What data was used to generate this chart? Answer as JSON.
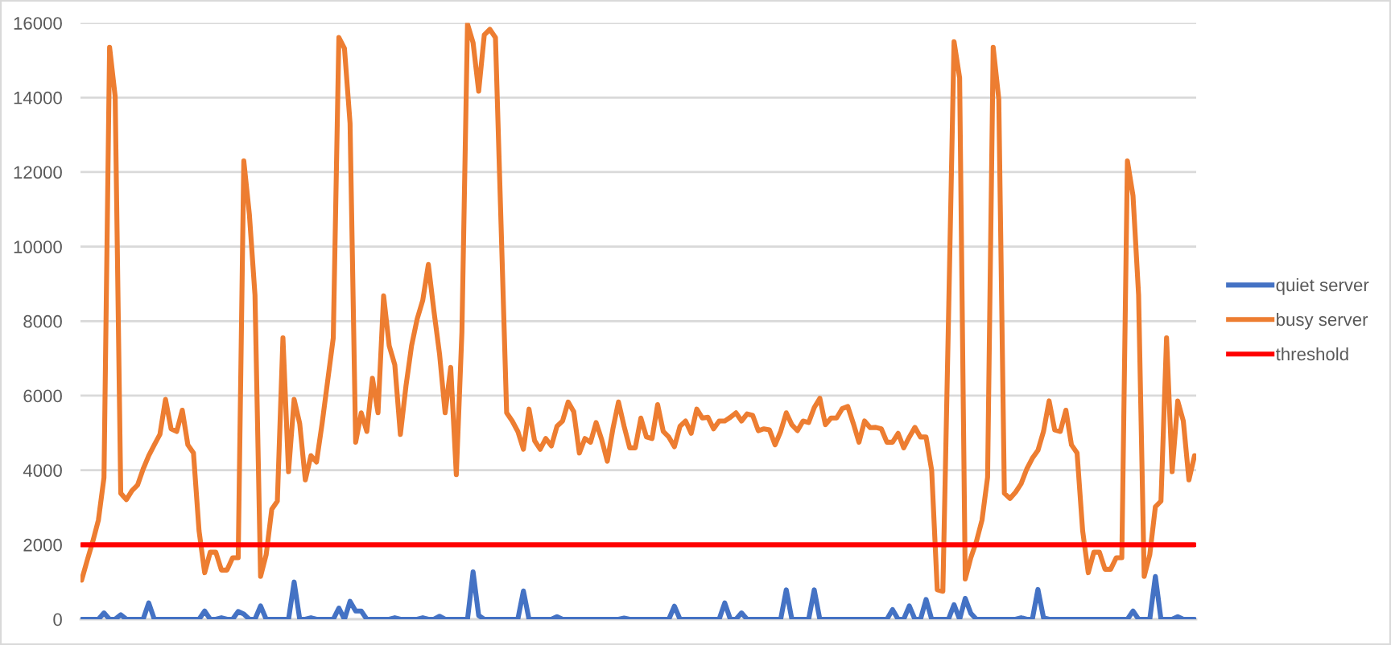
{
  "chart_data": {
    "type": "line",
    "categories": [
      null,
      null,
      null,
      null,
      null,
      null,
      null,
      null,
      null,
      null,
      null,
      null,
      null,
      null,
      null,
      null,
      null,
      null,
      null,
      null,
      null,
      null,
      null,
      null,
      null,
      null,
      null,
      null,
      null,
      null,
      null,
      null,
      null,
      null,
      null,
      null,
      null,
      null,
      null,
      null,
      null,
      null,
      null,
      null,
      null,
      null,
      null,
      null,
      null,
      null,
      null,
      null,
      null,
      null,
      null,
      null,
      null,
      null,
      null,
      null,
      null,
      null,
      null,
      null,
      null,
      null,
      null,
      null,
      null,
      null,
      null,
      null,
      null,
      null,
      null,
      null,
      null,
      null,
      null,
      null,
      null,
      null,
      null,
      null,
      null,
      null,
      null,
      null,
      null,
      null,
      null,
      null,
      null,
      null,
      null,
      null,
      null,
      null,
      null,
      null,
      null,
      null,
      null,
      null,
      null,
      null,
      null,
      null,
      null,
      null,
      null,
      null,
      null,
      null,
      null,
      null,
      null,
      null,
      null,
      null,
      null,
      null,
      null,
      null,
      null,
      null,
      null,
      null,
      null,
      null,
      null,
      null,
      null,
      null,
      null,
      null,
      null,
      null,
      null,
      null,
      null,
      null,
      null,
      null,
      null,
      null,
      null,
      null,
      null,
      null,
      null,
      null,
      null,
      null,
      null,
      null,
      null,
      null,
      null,
      null,
      null,
      null,
      null,
      null,
      null,
      null,
      null,
      null,
      null,
      null,
      null,
      null,
      null,
      null,
      null,
      null,
      null,
      null,
      null,
      null,
      null,
      null,
      null,
      null,
      null,
      null,
      null,
      null,
      null,
      null,
      null,
      null,
      null,
      null,
      null,
      null,
      null,
      null,
      null,
      null
    ],
    "series": [
      {
        "name": "quiet server",
        "color": "#4472c4",
        "values": [
          0,
          0,
          0,
          0,
          170,
          0,
          0,
          120,
          0,
          0,
          0,
          0,
          440,
          0,
          0,
          0,
          0,
          0,
          0,
          0,
          0,
          0,
          220,
          0,
          0,
          40,
          0,
          0,
          210,
          140,
          0,
          0,
          360,
          0,
          0,
          0,
          0,
          0,
          1000,
          0,
          0,
          40,
          0,
          0,
          0,
          0,
          300,
          0,
          480,
          220,
          220,
          0,
          0,
          0,
          0,
          0,
          40,
          0,
          0,
          0,
          0,
          40,
          0,
          0,
          80,
          0,
          0,
          0,
          0,
          0,
          1270,
          100,
          0,
          0,
          0,
          0,
          0,
          0,
          0,
          760,
          0,
          0,
          0,
          0,
          0,
          70,
          0,
          0,
          0,
          0,
          0,
          0,
          0,
          0,
          0,
          0,
          0,
          30,
          0,
          0,
          0,
          0,
          0,
          0,
          0,
          0,
          350,
          0,
          0,
          0,
          0,
          0,
          0,
          0,
          0,
          440,
          0,
          0,
          170,
          0,
          0,
          0,
          0,
          0,
          0,
          0,
          790,
          0,
          0,
          0,
          0,
          790,
          0,
          0,
          0,
          0,
          0,
          0,
          0,
          0,
          0,
          0,
          0,
          0,
          0,
          260,
          0,
          0,
          360,
          0,
          0,
          530,
          0,
          0,
          0,
          0,
          390,
          0,
          560,
          160,
          0,
          0,
          0,
          0,
          0,
          0,
          0,
          0,
          40,
          0,
          0,
          800,
          40,
          0,
          0,
          0,
          0,
          0,
          0,
          0,
          0,
          0,
          0,
          0,
          0,
          0,
          0,
          0,
          220,
          0,
          0,
          0,
          1150,
          0,
          0,
          0,
          70,
          0,
          0,
          0
        ]
      },
      {
        "name": "busy server",
        "color": "#ed7d31",
        "values": [
          1050,
          1580,
          2090,
          2660,
          3800,
          15350,
          14030,
          3380,
          3210,
          3450,
          3600,
          4030,
          4390,
          4680,
          4960,
          5900,
          5110,
          5040,
          5610,
          4680,
          4460,
          2370,
          1250,
          1800,
          1800,
          1320,
          1320,
          1650,
          1650,
          12300,
          10860,
          8700,
          1150,
          1730,
          2950,
          3170,
          7550,
          3960,
          5900,
          5250,
          3740,
          4390,
          4220,
          5250,
          6400,
          7550,
          15610,
          15320,
          13310,
          4750,
          5540,
          5040,
          6470,
          5540,
          8680,
          7340,
          6830,
          4960,
          6260,
          7340,
          8060,
          8560,
          9520,
          8270,
          7120,
          5540,
          6760,
          3880,
          7700,
          15970,
          15470,
          14170,
          15680,
          15830,
          15610,
          10600,
          5540,
          5320,
          5040,
          4560,
          5640,
          4790,
          4560,
          4850,
          4650,
          5180,
          5320,
          5830,
          5570,
          4460,
          4850,
          4750,
          5280,
          4820,
          4240,
          5110,
          5830,
          5180,
          4600,
          4600,
          5400,
          4890,
          4850,
          5760,
          5040,
          4890,
          4630,
          5180,
          5320,
          4990,
          5640,
          5400,
          5420,
          5110,
          5320,
          5320,
          5420,
          5540,
          5320,
          5510,
          5470,
          5060,
          5110,
          5080,
          4680,
          5040,
          5540,
          5220,
          5060,
          5320,
          5280,
          5680,
          5930,
          5220,
          5400,
          5400,
          5650,
          5710,
          5250,
          4750,
          5320,
          5140,
          5150,
          5110,
          4750,
          4750,
          4990,
          4600,
          4890,
          5150,
          4890,
          4890,
          4000,
          790,
          750,
          8000,
          15500,
          14530,
          1080,
          1650,
          2090,
          2660,
          3810,
          15350,
          13960,
          3380,
          3240,
          3410,
          3640,
          4030,
          4320,
          4530,
          5040,
          5860,
          5080,
          5040,
          5610,
          4680,
          4460,
          2370,
          1250,
          1800,
          1800,
          1340,
          1340,
          1650,
          1650,
          12300,
          11370,
          8700,
          1150,
          1730,
          3020,
          3170,
          7550,
          3960,
          5860,
          5320,
          3740,
          4390
        ]
      },
      {
        "name": "threshold",
        "color": "#ff0000",
        "values": [
          2000,
          2000,
          2000,
          2000,
          2000,
          2000,
          2000,
          2000,
          2000,
          2000,
          2000,
          2000,
          2000,
          2000,
          2000,
          2000,
          2000,
          2000,
          2000,
          2000,
          2000,
          2000,
          2000,
          2000,
          2000,
          2000,
          2000,
          2000,
          2000,
          2000,
          2000,
          2000,
          2000,
          2000,
          2000,
          2000,
          2000,
          2000,
          2000,
          2000,
          2000,
          2000,
          2000,
          2000,
          2000,
          2000,
          2000,
          2000,
          2000,
          2000,
          2000,
          2000,
          2000,
          2000,
          2000,
          2000,
          2000,
          2000,
          2000,
          2000,
          2000,
          2000,
          2000,
          2000,
          2000,
          2000,
          2000,
          2000,
          2000,
          2000,
          2000,
          2000,
          2000,
          2000,
          2000,
          2000,
          2000,
          2000,
          2000,
          2000,
          2000,
          2000,
          2000,
          2000,
          2000,
          2000,
          2000,
          2000,
          2000,
          2000,
          2000,
          2000,
          2000,
          2000,
          2000,
          2000,
          2000,
          2000,
          2000,
          2000,
          2000,
          2000,
          2000,
          2000,
          2000,
          2000,
          2000,
          2000,
          2000,
          2000,
          2000,
          2000,
          2000,
          2000,
          2000,
          2000,
          2000,
          2000,
          2000,
          2000,
          2000,
          2000,
          2000,
          2000,
          2000,
          2000,
          2000,
          2000,
          2000,
          2000,
          2000,
          2000,
          2000,
          2000,
          2000,
          2000,
          2000,
          2000,
          2000,
          2000,
          2000,
          2000,
          2000,
          2000,
          2000,
          2000,
          2000,
          2000,
          2000,
          2000,
          2000,
          2000,
          2000,
          2000,
          2000,
          2000,
          2000,
          2000,
          2000,
          2000,
          2000,
          2000,
          2000,
          2000,
          2000,
          2000,
          2000,
          2000,
          2000,
          2000,
          2000,
          2000,
          2000,
          2000,
          2000,
          2000,
          2000,
          2000,
          2000,
          2000,
          2000,
          2000,
          2000,
          2000,
          2000,
          2000,
          2000,
          2000,
          2000,
          2000,
          2000,
          2000,
          2000,
          2000,
          2000,
          2000,
          2000,
          2000,
          2000,
          2000
        ]
      }
    ],
    "ylim": [
      0,
      16000
    ],
    "yticks": [
      0,
      2000,
      4000,
      6000,
      8000,
      10000,
      12000,
      14000,
      16000
    ],
    "grid": "y",
    "legend": "right",
    "tick_labels": "y",
    "line_style": "solid"
  }
}
